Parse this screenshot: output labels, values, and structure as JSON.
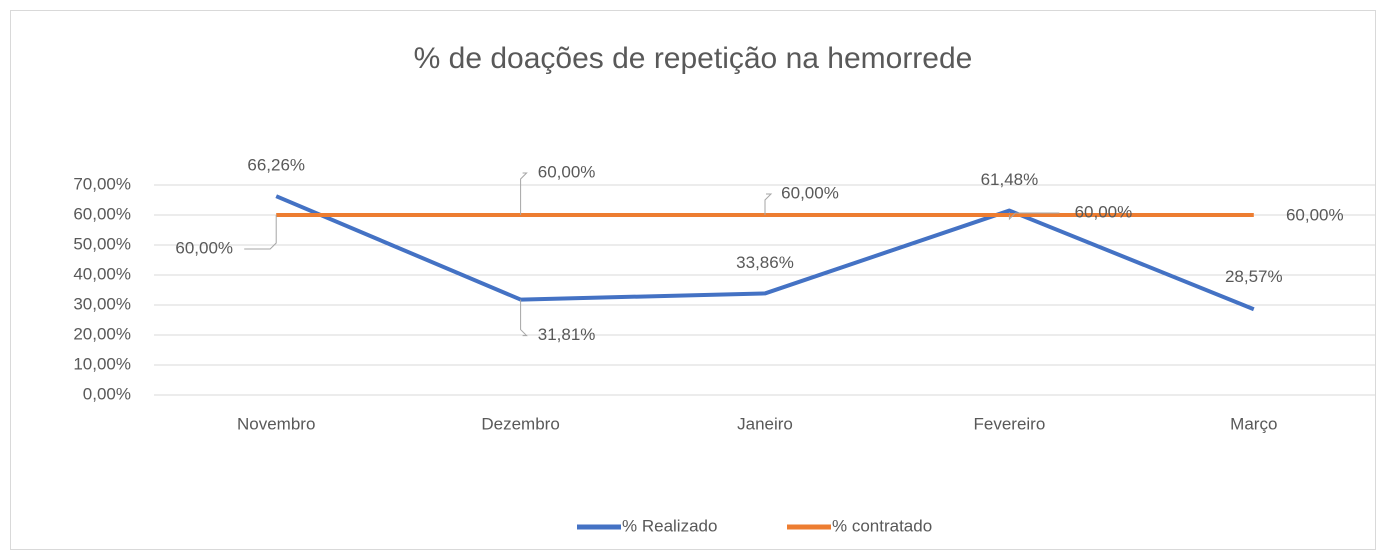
{
  "chart_data": {
    "type": "line",
    "title": "% de doações de repetição na hemorrede",
    "categories": [
      "Novembro",
      "Dezembro",
      "Janeiro",
      "Fevereiro",
      "Março"
    ],
    "series": [
      {
        "name": "% Realizado",
        "color": "#4472c4",
        "values": [
          66.26,
          31.81,
          33.86,
          61.48,
          28.57
        ],
        "value_labels": [
          "66,26%",
          "31,81%",
          "33,86%",
          "61,48%",
          "28,57%"
        ]
      },
      {
        "name": "% contratado",
        "color": "#ed7d31",
        "values": [
          60,
          60,
          60,
          60,
          60
        ],
        "value_labels": [
          "60,00%",
          "60,00%",
          "60,00%",
          "60,00%",
          "60,00%"
        ]
      }
    ],
    "ylim": [
      0,
      70
    ],
    "yticks": [
      {
        "value": 0,
        "label": "0,00%"
      },
      {
        "value": 10,
        "label": "10,00%"
      },
      {
        "value": 20,
        "label": "20,00%"
      },
      {
        "value": 30,
        "label": "30,00%"
      },
      {
        "value": 40,
        "label": "40,00%"
      },
      {
        "value": 50,
        "label": "50,00%"
      },
      {
        "value": 60,
        "label": "60,00%"
      },
      {
        "value": 70,
        "label": "70,00%"
      }
    ],
    "grid": true,
    "legend": "bottom"
  }
}
